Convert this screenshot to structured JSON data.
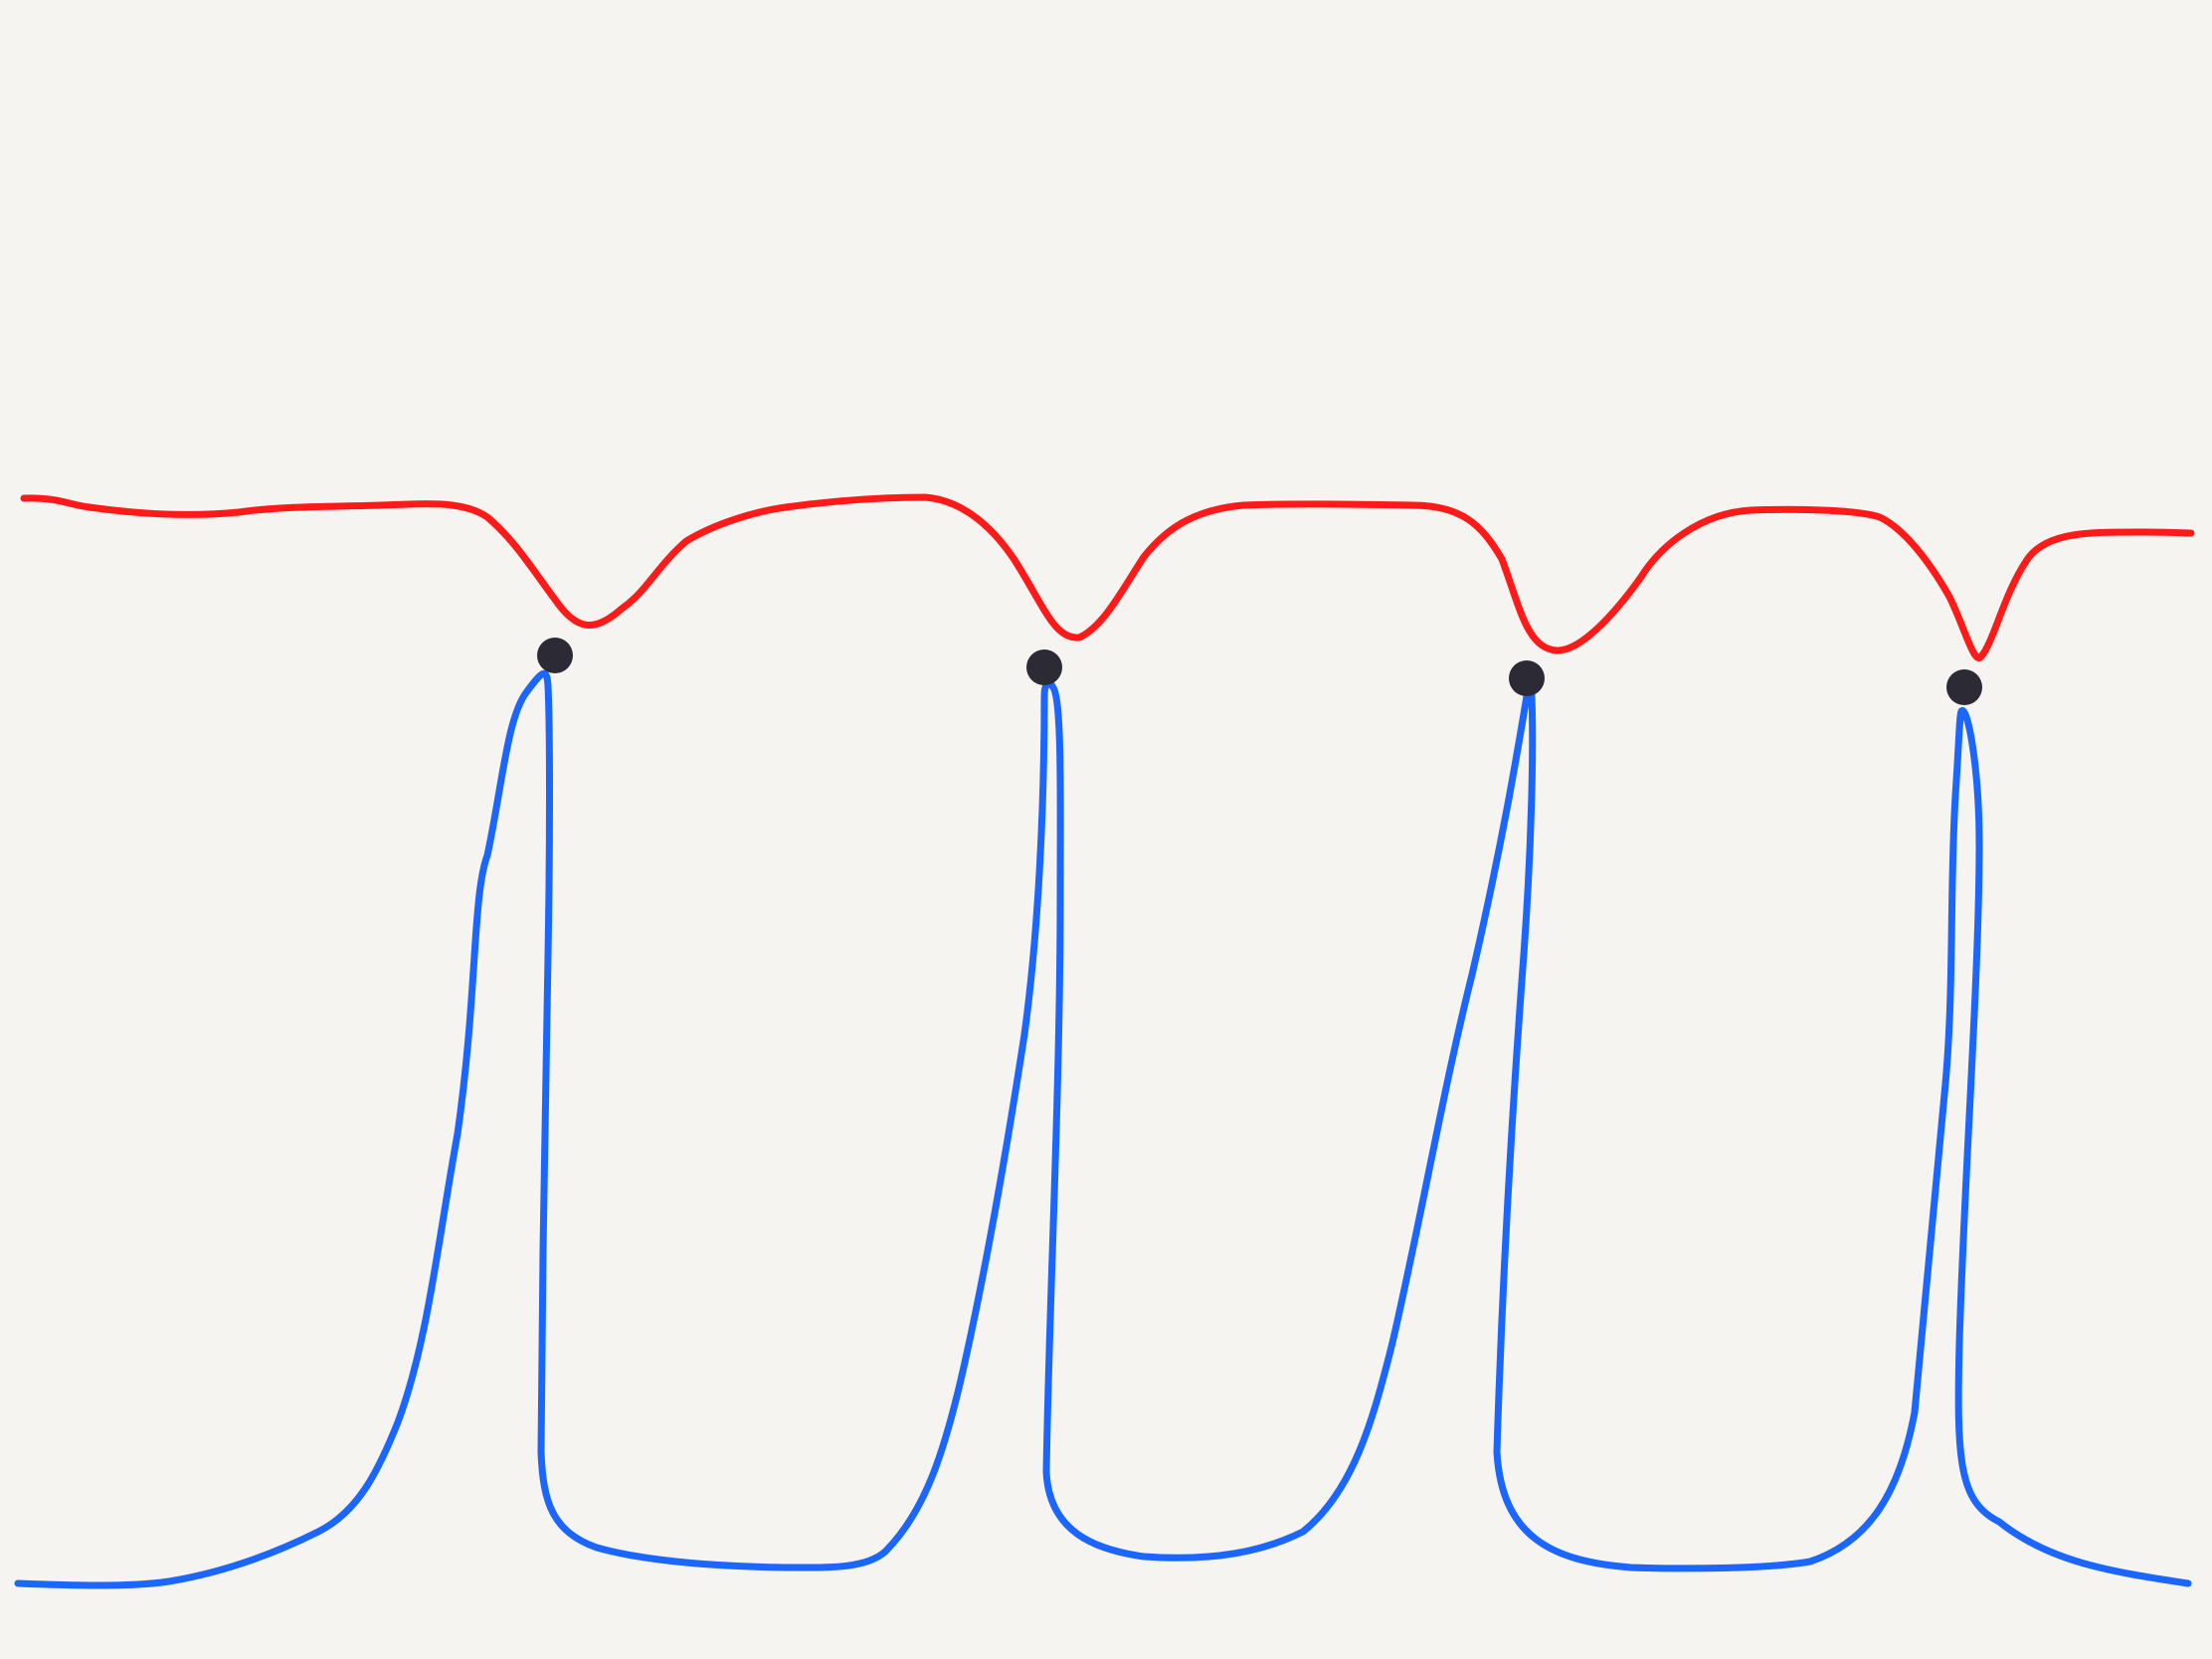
{
  "canvas": {
    "background": "#f5f4f0"
  },
  "strokes": [
    {
      "name": "red-wave-line",
      "color": "#ff1a1a"
    },
    {
      "name": "blue-loop-line",
      "color": "#1a66ff"
    }
  ],
  "nodes": {
    "color": "#2b2a35",
    "count": 4
  }
}
